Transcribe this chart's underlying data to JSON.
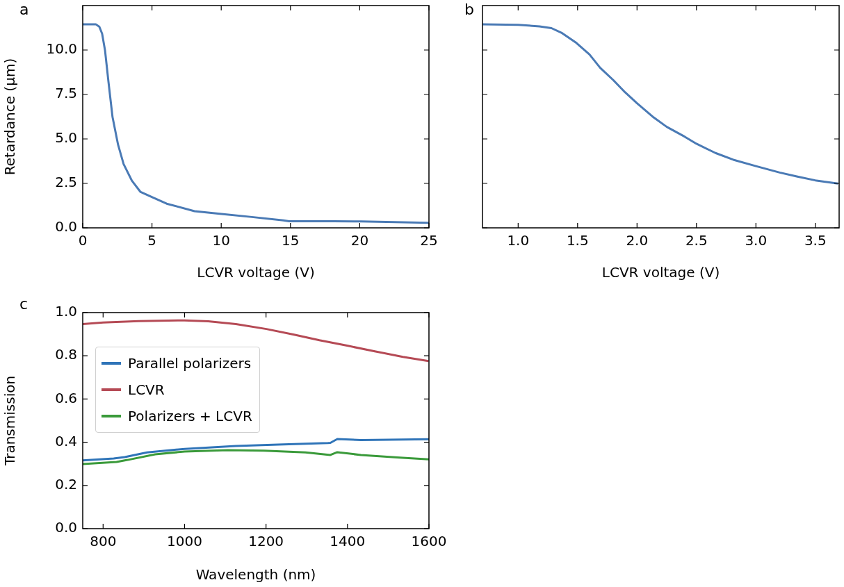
{
  "chart_data": [
    {
      "type": "line",
      "title": "a",
      "xlabel": "LCVR voltage (V)",
      "ylabel": "Retardance (μm)",
      "xlim": [
        0,
        25
      ],
      "xticks": [
        0,
        5,
        10,
        15,
        20,
        25
      ],
      "ylim": [
        0,
        12.5
      ],
      "yticks": [
        {
          "value": 0,
          "label": "0.0"
        },
        {
          "value": 2.5,
          "label": "2.5"
        },
        {
          "value": 5,
          "label": "5.0"
        },
        {
          "value": 7.5,
          "label": "7.5"
        },
        {
          "value": 10,
          "label": "10.0"
        }
      ],
      "grid": false,
      "legend": false,
      "color": "#4a7ab5",
      "x": [
        0,
        0.94,
        1.2,
        1.4,
        1.61,
        1.85,
        2.15,
        2.55,
        2.95,
        3.55,
        4.16,
        5.02,
        6.06,
        8.07,
        10.02,
        12.09,
        14.5,
        14.9,
        18.1,
        20.1,
        25
      ],
      "values": [
        11.45,
        11.45,
        11.31,
        10.92,
        9.98,
        8.27,
        6.24,
        4.68,
        3.59,
        2.65,
        2.03,
        1.72,
        1.36,
        0.94,
        0.78,
        0.62,
        0.42,
        0.37,
        0.37,
        0.36,
        0.28
      ]
    },
    {
      "type": "line",
      "title": "b",
      "xlabel": "LCVR voltage (V)",
      "xlim": [
        0.7,
        3.7
      ],
      "xticks": [
        {
          "value": 1,
          "label": "1.0"
        },
        {
          "value": 1.5,
          "label": "1.5"
        },
        {
          "value": 2,
          "label": "2.0"
        },
        {
          "value": 2.5,
          "label": "2.5"
        },
        {
          "value": 3,
          "label": "3.0"
        },
        {
          "value": 3.5,
          "label": "3.5"
        }
      ],
      "ylim": [
        0,
        12.5
      ],
      "yticks": [
        0,
        2.5,
        5,
        7.5,
        10
      ],
      "tick_labels": "x",
      "grid": false,
      "legend": false,
      "color": "#4a7ab5",
      "x": [
        0.7,
        1.0,
        1.18,
        1.28,
        1.37,
        1.49,
        1.6,
        1.69,
        1.8,
        1.9,
        2.0,
        2.14,
        2.25,
        2.4,
        2.5,
        2.66,
        2.81,
        3.0,
        3.2,
        3.35,
        3.5,
        3.69
      ],
      "values": [
        11.45,
        11.42,
        11.33,
        11.23,
        10.95,
        10.4,
        9.75,
        9.0,
        8.31,
        7.62,
        7.01,
        6.21,
        5.68,
        5.13,
        4.73,
        4.21,
        3.83,
        3.47,
        3.11,
        2.88,
        2.67,
        2.49
      ]
    },
    {
      "type": "line",
      "title": "c",
      "xlabel": "Wavelength (nm)",
      "ylabel": "Transmission",
      "xlim": [
        750,
        1600
      ],
      "xticks": [
        800,
        1000,
        1200,
        1400,
        1600
      ],
      "ylim": [
        0,
        1
      ],
      "yticks": [
        {
          "value": 0,
          "label": "0.0"
        },
        {
          "value": 0.2,
          "label": "0.2"
        },
        {
          "value": 0.4,
          "label": "0.4"
        },
        {
          "value": 0.6,
          "label": "0.6"
        },
        {
          "value": 0.8,
          "label": "0.8"
        },
        {
          "value": 1,
          "label": "1.0"
        }
      ],
      "grid": false,
      "legend": "top left",
      "series": [
        {
          "name": "Parallel polarizers",
          "color": "#2f74b8",
          "x": [
            750,
            826,
            853,
            908,
            1000,
            1126,
            1229,
            1352,
            1358,
            1375,
            1433,
            1600
          ],
          "values": [
            0.316,
            0.325,
            0.331,
            0.353,
            0.369,
            0.383,
            0.389,
            0.396,
            0.397,
            0.415,
            0.41,
            0.414
          ]
        },
        {
          "name": "LCVR",
          "color": "#b54a55",
          "x": [
            750,
            800,
            887,
            1000,
            1058,
            1126,
            1201,
            1269,
            1331,
            1399,
            1467,
            1536,
            1599
          ],
          "values": [
            0.947,
            0.954,
            0.961,
            0.964,
            0.96,
            0.947,
            0.924,
            0.898,
            0.872,
            0.847,
            0.821,
            0.795,
            0.776
          ]
        },
        {
          "name": "Polarizers + LCVR",
          "color": "#3a9a3a",
          "x": [
            750,
            833,
            860,
            928,
            1000,
            1106,
            1195,
            1297,
            1358,
            1375,
            1433,
            1529,
            1600
          ],
          "values": [
            0.299,
            0.309,
            0.318,
            0.344,
            0.357,
            0.363,
            0.361,
            0.353,
            0.341,
            0.354,
            0.341,
            0.329,
            0.321
          ]
        }
      ]
    }
  ]
}
